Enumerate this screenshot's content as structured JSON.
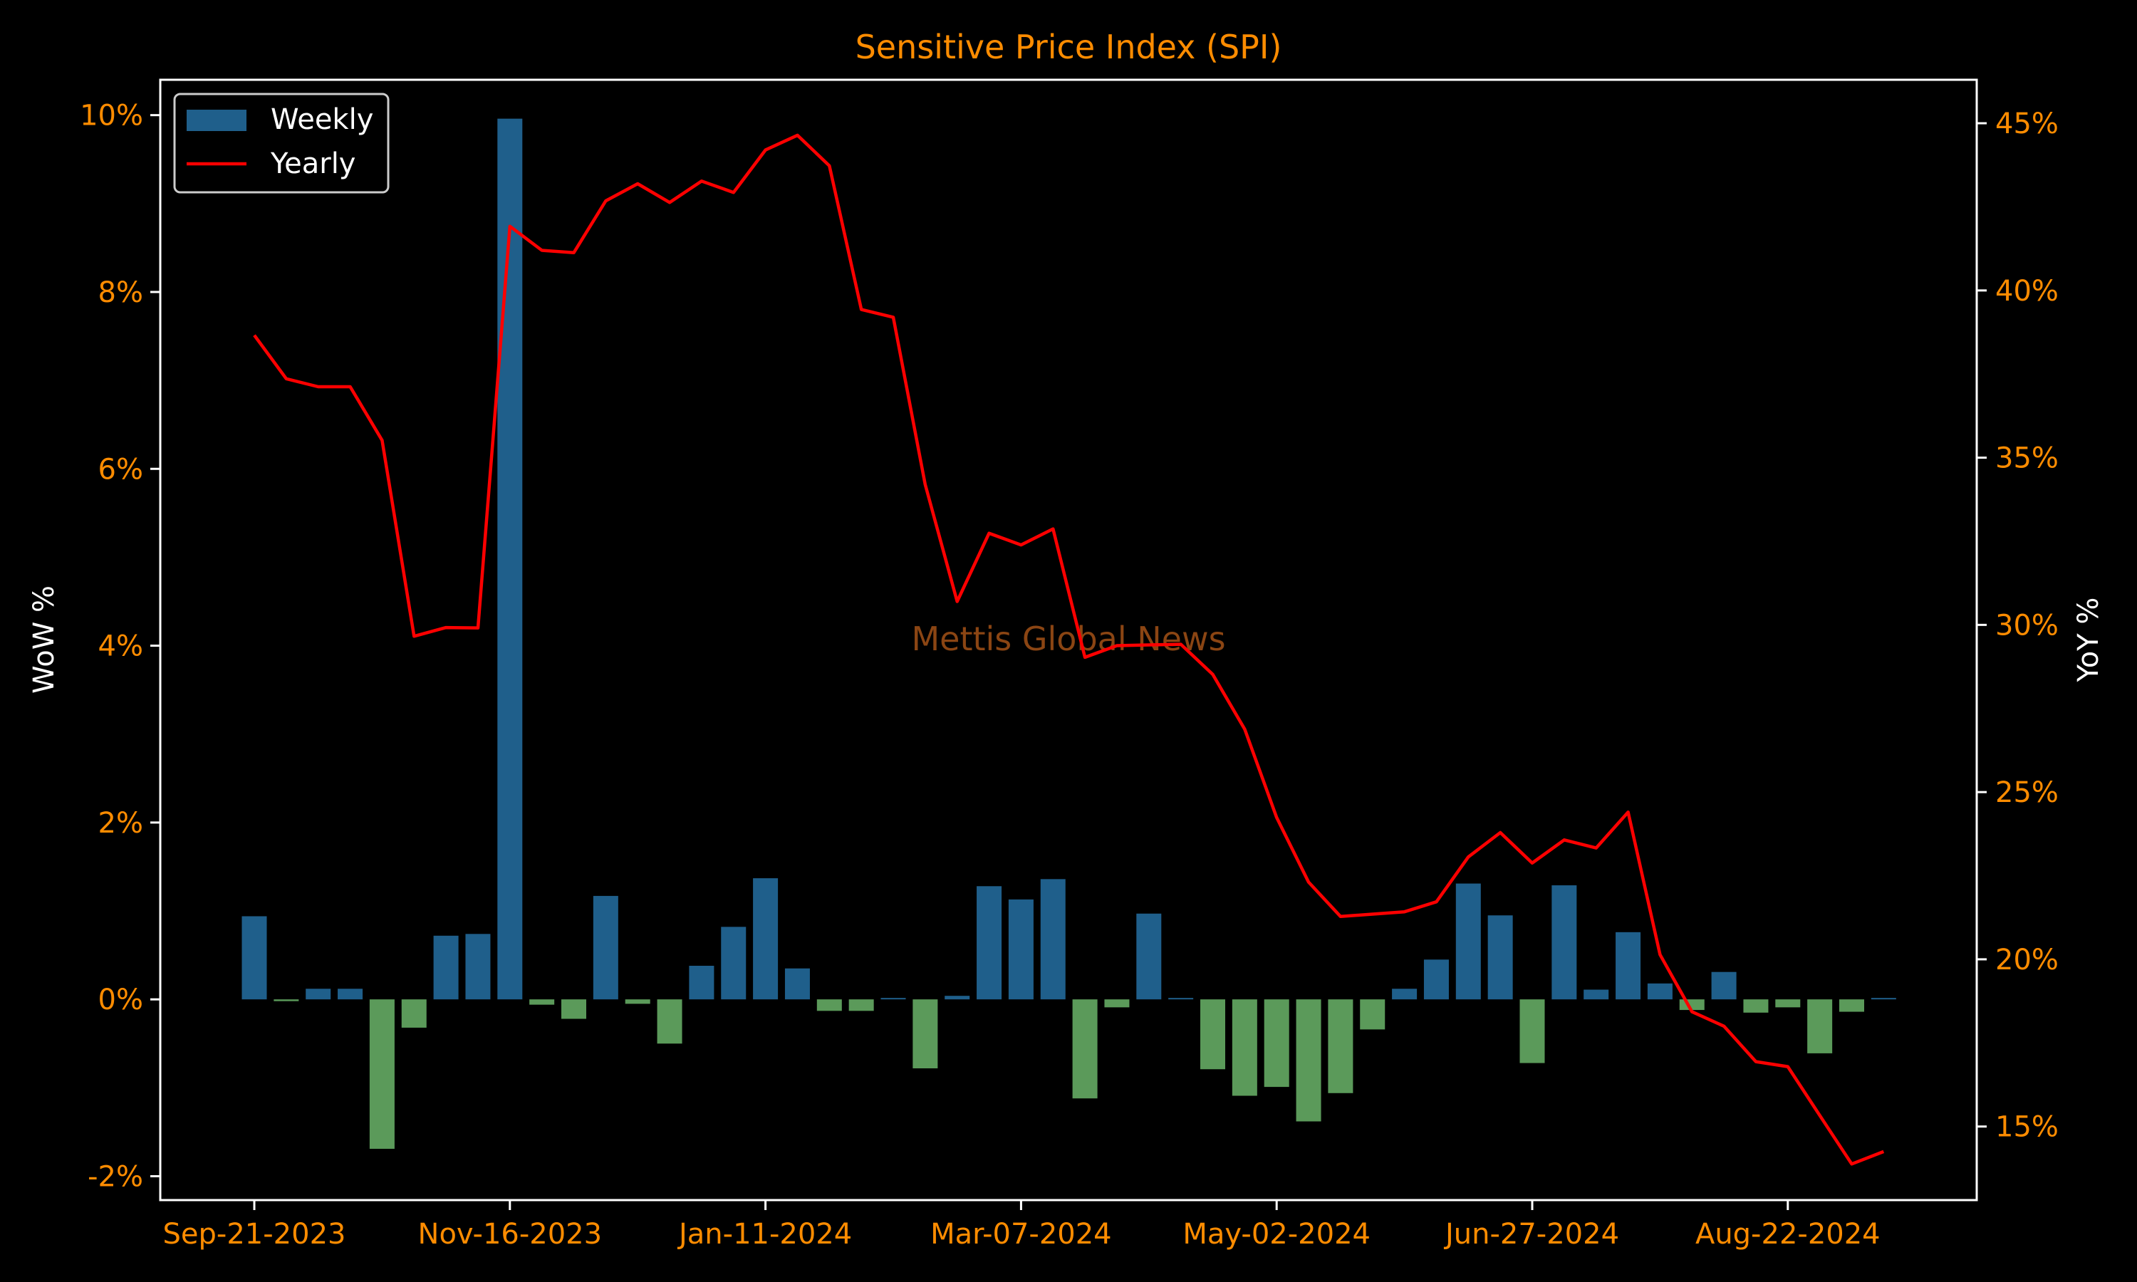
{
  "chart_data": {
    "type": "bar+line",
    "title": "Sensitive Price Index (SPI)",
    "ylabel_left": "WoW %",
    "ylabel_right": "YoY %",
    "watermark": "Mettis Global News",
    "x_tick_labels": [
      "Sep-21-2023",
      "Nov-16-2023",
      "Jan-11-2024",
      "Mar-07-2024",
      "May-02-2024",
      "Jun-27-2024",
      "Aug-22-2024"
    ],
    "x_tick_indices": [
      0,
      8,
      16,
      24,
      32,
      40,
      48
    ],
    "y_left_ticks": [
      -2,
      0,
      2,
      4,
      6,
      8,
      10
    ],
    "y_left_tick_labels": [
      "-2%",
      "0%",
      "2%",
      "4%",
      "6%",
      "8%",
      "10%"
    ],
    "y_left_range": [
      -2.27,
      10.4
    ],
    "y_right_ticks": [
      15,
      20,
      25,
      30,
      35,
      40,
      45
    ],
    "y_right_tick_labels": [
      "15%",
      "20%",
      "25%",
      "30%",
      "35%",
      "40%",
      "45%"
    ],
    "y_right_range": [
      12.8,
      46.3
    ],
    "legend_position": "top-left",
    "colors": {
      "positive_bar": "#1f5f8b",
      "negative_bar": "#5b9a5a",
      "line": "#ff0000",
      "axis": "#ffffff",
      "tick_text": "#ff8c00",
      "title": "#ff8c00",
      "watermark": "#8b4513"
    },
    "series": [
      {
        "name": "Weekly",
        "kind": "bar",
        "values": [
          0.94,
          -0.02,
          0.12,
          0.12,
          -1.69,
          -0.32,
          0.72,
          0.74,
          9.96,
          -0.06,
          -0.22,
          1.17,
          -0.05,
          -0.5,
          0.38,
          0.82,
          1.37,
          0.35,
          -0.13,
          -0.13,
          0.0,
          -0.78,
          0.04,
          1.28,
          1.13,
          1.36,
          -1.12,
          -0.09,
          0.97,
          0.0,
          -0.79,
          -1.09,
          -0.99,
          -1.38,
          -1.06,
          -0.34,
          0.12,
          0.45,
          1.31,
          0.95,
          -0.72,
          1.29,
          0.11,
          0.76,
          0.18,
          -0.12,
          0.31,
          -0.15,
          -0.09,
          -0.61,
          -0.14,
          0.01
        ]
      },
      {
        "name": "Yearly",
        "kind": "line",
        "values": [
          38.66,
          37.36,
          37.12,
          37.12,
          35.52,
          29.66,
          29.92,
          29.91,
          41.92,
          41.2,
          41.13,
          42.68,
          43.19,
          42.63,
          43.27,
          42.93,
          44.2,
          44.64,
          43.73,
          39.43,
          39.2,
          34.2,
          30.7,
          32.74,
          32.39,
          32.87,
          29.03,
          29.38,
          29.4,
          29.42,
          28.52,
          26.88,
          24.24,
          22.31,
          21.28,
          21.35,
          21.42,
          21.72,
          23.06,
          23.79,
          22.88,
          23.57,
          23.33,
          24.4,
          20.14,
          18.43,
          18.0,
          16.94,
          16.79,
          15.33,
          13.88,
          14.25
        ]
      }
    ]
  }
}
